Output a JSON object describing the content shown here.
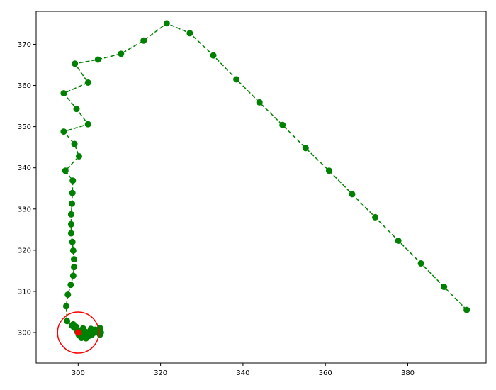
{
  "chart_data": {
    "type": "line",
    "title": "",
    "xlabel": "",
    "ylabel": "",
    "xlim": [
      289.8,
      399.0
    ],
    "ylim": [
      292.6,
      378.0
    ],
    "grid": false,
    "x_ticks": [
      300,
      320,
      340,
      360,
      380
    ],
    "y_ticks": [
      300,
      310,
      320,
      330,
      340,
      350,
      360,
      370
    ],
    "x_tick_labels": [
      "300",
      "320",
      "340",
      "360",
      "380"
    ],
    "y_tick_labels": [
      "300",
      "310",
      "320",
      "330",
      "340",
      "350",
      "360",
      "370"
    ],
    "series": [
      {
        "color": "#008000",
        "line_style": "dashed",
        "marker": "circle",
        "points": [
          [
            394.3,
            305.5
          ],
          [
            388.8,
            311.1
          ],
          [
            383.2,
            316.8
          ],
          [
            377.7,
            322.3
          ],
          [
            372.1,
            328.0
          ],
          [
            366.5,
            333.6
          ],
          [
            360.9,
            339.3
          ],
          [
            355.2,
            344.8
          ],
          [
            349.6,
            350.4
          ],
          [
            344.0,
            355.9
          ],
          [
            338.4,
            361.5
          ],
          [
            332.8,
            367.3
          ],
          [
            327.1,
            372.7
          ],
          [
            321.5,
            375.1
          ],
          [
            315.9,
            370.9
          ],
          [
            310.4,
            367.7
          ],
          [
            304.8,
            366.3
          ],
          [
            299.2,
            365.3
          ],
          [
            302.4,
            360.7
          ],
          [
            296.5,
            358.1
          ],
          [
            299.6,
            354.3
          ],
          [
            302.4,
            350.6
          ],
          [
            296.5,
            348.8
          ],
          [
            299.1,
            345.8
          ],
          [
            300.2,
            342.8
          ],
          [
            296.9,
            339.3
          ],
          [
            298.7,
            336.9
          ],
          [
            298.6,
            333.9
          ],
          [
            298.5,
            331.3
          ],
          [
            298.3,
            328.7
          ],
          [
            298.3,
            326.3
          ],
          [
            298.3,
            324.1
          ],
          [
            298.6,
            322.0
          ],
          [
            298.8,
            319.9
          ],
          [
            299.0,
            317.8
          ],
          [
            299.0,
            315.9
          ],
          [
            298.8,
            313.8
          ],
          [
            298.2,
            311.6
          ],
          [
            297.5,
            309.2
          ],
          [
            297.1,
            306.4
          ],
          [
            297.3,
            302.8
          ],
          [
            298.5,
            301.7
          ],
          [
            299.0,
            301.2
          ],
          [
            300.5,
            300.5
          ],
          [
            301.2,
            301.0
          ],
          [
            303.1,
            300.9
          ],
          [
            305.3,
            301.1
          ],
          [
            305.5,
            300.0
          ],
          [
            305.3,
            299.5
          ],
          [
            304.2,
            300.7
          ],
          [
            303.5,
            300.3
          ],
          [
            302.6,
            299.2
          ],
          [
            301.9,
            298.6
          ],
          [
            300.8,
            298.7
          ],
          [
            300.3,
            299.3
          ],
          [
            301.0,
            299.9
          ],
          [
            301.8,
            300.2
          ],
          [
            302.7,
            299.9
          ],
          [
            303.4,
            299.6
          ],
          [
            304.0,
            300.0
          ],
          [
            303.3,
            299.5
          ],
          [
            302.4,
            299.8
          ],
          [
            301.6,
            299.3
          ],
          [
            300.9,
            299.1
          ],
          [
            300.1,
            299.5
          ],
          [
            299.7,
            300.3
          ],
          [
            298.8,
            302.0
          ],
          [
            299.5,
            301.4
          ],
          [
            300.2,
            300.4
          ]
        ]
      }
    ],
    "annotations": [
      {
        "type": "target-point",
        "x": 300.0,
        "y": 300.0,
        "color": "#ff0000"
      },
      {
        "type": "circle",
        "center": [
          300.0,
          300.0
        ],
        "radius": 5,
        "color": "#ff0000"
      }
    ]
  }
}
